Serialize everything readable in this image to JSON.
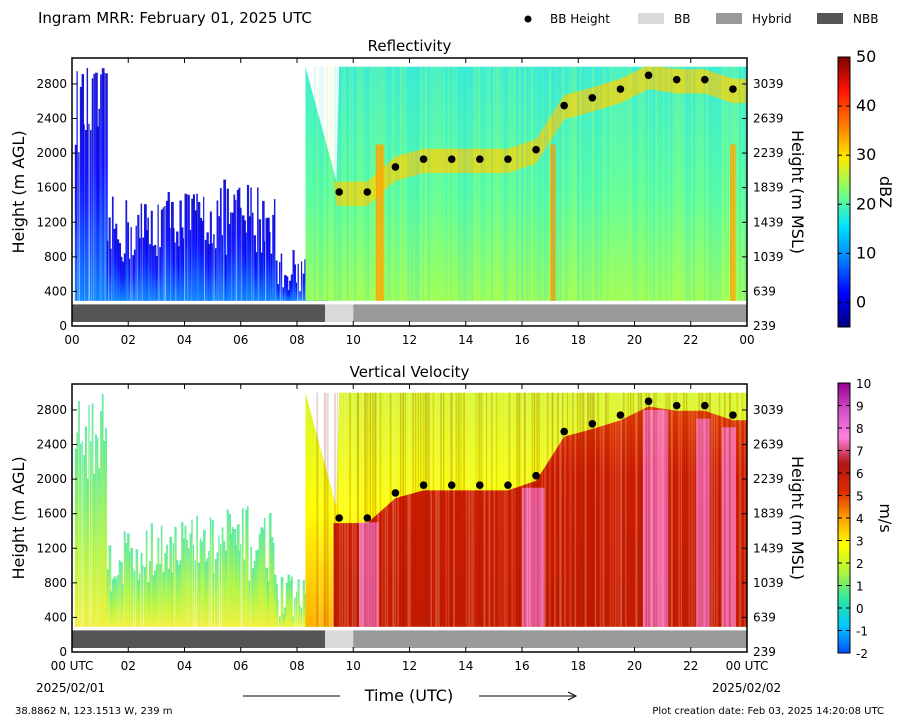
{
  "header": {
    "title": "Ingram MRR:  February 01, 2025 UTC",
    "legend": [
      {
        "label": "BB Height",
        "kind": "dot",
        "color": "#000000"
      },
      {
        "label": "BB",
        "kind": "swatch",
        "color": "#d9d9d9"
      },
      {
        "label": "Hybrid",
        "kind": "swatch",
        "color": "#999999"
      },
      {
        "label": "NBB",
        "kind": "swatch",
        "color": "#555555"
      }
    ]
  },
  "footer": {
    "location": "38.8862 N, 123.1513 W, 239 m",
    "created": "Plot creation date: Feb 03, 2025 14:20:08 UTC",
    "time_label": "Time (UTC)",
    "start_date": "2025/02/01",
    "end_date": "2025/02/02"
  },
  "chart_data": [
    {
      "type": "heatmap",
      "title": "Reflectivity",
      "ylabel": "Height (m AGL)",
      "y2label": "Height (m MSL)",
      "clabel": "dBZ",
      "xlim": [
        0,
        24
      ],
      "ylim": [
        0,
        3100
      ],
      "x_ticks": [
        "00",
        "02",
        "04",
        "06",
        "08",
        "10",
        "12",
        "14",
        "16",
        "18",
        "20",
        "22",
        "00"
      ],
      "y_ticks": [
        0,
        400,
        800,
        1200,
        1600,
        2000,
        2400,
        2800
      ],
      "y2_ticks": [
        239,
        639,
        1039,
        1439,
        1839,
        2239,
        2639,
        3039
      ],
      "clim": [
        -5,
        50
      ],
      "cbar_ticks": [
        0,
        10,
        20,
        30,
        40,
        50
      ],
      "colormap": [
        "#00007f",
        "#0000ff",
        "#0080ff",
        "#00e5ff",
        "#7dff7a",
        "#ffea00",
        "#ff7a00",
        "#ff1400",
        "#7f0000"
      ],
      "bb_height": {
        "x": [
          9.5,
          10.5,
          11.5,
          12.5,
          13.5,
          14.5,
          15.5,
          16.5,
          17.5,
          18.5,
          19.5,
          20.5,
          21.5,
          22.5,
          23.5
        ],
        "y": [
          1550,
          1550,
          1840,
          1930,
          1930,
          1930,
          1930,
          2040,
          2550,
          2640,
          2740,
          2900,
          2850,
          2850,
          2740
        ]
      },
      "bb_type": [
        {
          "start": 0,
          "end": 9,
          "type": "NBB"
        },
        {
          "start": 9,
          "end": 10,
          "type": "BB"
        },
        {
          "start": 10,
          "end": 24,
          "type": "Hybrid"
        }
      ]
    },
    {
      "type": "heatmap",
      "title": "Vertical Velocity",
      "ylabel": "Height (m AGL)",
      "y2label": "Height (m MSL)",
      "clabel": "m/s",
      "xlim": [
        0,
        24
      ],
      "ylim": [
        0,
        3100
      ],
      "x_ticks": [
        "00 UTC",
        "02",
        "04",
        "06",
        "08",
        "10",
        "12",
        "14",
        "16",
        "18",
        "20",
        "22",
        "00 UTC"
      ],
      "y_ticks": [
        0,
        400,
        800,
        1200,
        1600,
        2000,
        2400,
        2800
      ],
      "y2_ticks": [
        239,
        639,
        1039,
        1439,
        1839,
        2239,
        2639,
        3039
      ],
      "clim": [
        -2,
        10
      ],
      "cbar_ticks": [
        -2,
        -1,
        0,
        1,
        2,
        3,
        4,
        5,
        6,
        7,
        8,
        9,
        10
      ],
      "colormap": [
        "#0050ff",
        "#00c8ff",
        "#2ee8a0",
        "#b0f53c",
        "#ffff00",
        "#ffa000",
        "#dd2a00",
        "#b41414",
        "#ff80e0",
        "#d050c8",
        "#9a0090"
      ],
      "bb_height": {
        "x": [
          9.5,
          10.5,
          11.5,
          12.5,
          13.5,
          14.5,
          15.5,
          16.5,
          17.5,
          18.5,
          19.5,
          20.5,
          21.5,
          22.5,
          23.5
        ],
        "y": [
          1550,
          1550,
          1840,
          1930,
          1930,
          1930,
          1930,
          2040,
          2550,
          2640,
          2740,
          2900,
          2850,
          2850,
          2740
        ]
      },
      "bb_type": [
        {
          "start": 0,
          "end": 9,
          "type": "NBB"
        },
        {
          "start": 9,
          "end": 10,
          "type": "BB"
        },
        {
          "start": 10,
          "end": 24,
          "type": "Hybrid"
        }
      ]
    }
  ]
}
